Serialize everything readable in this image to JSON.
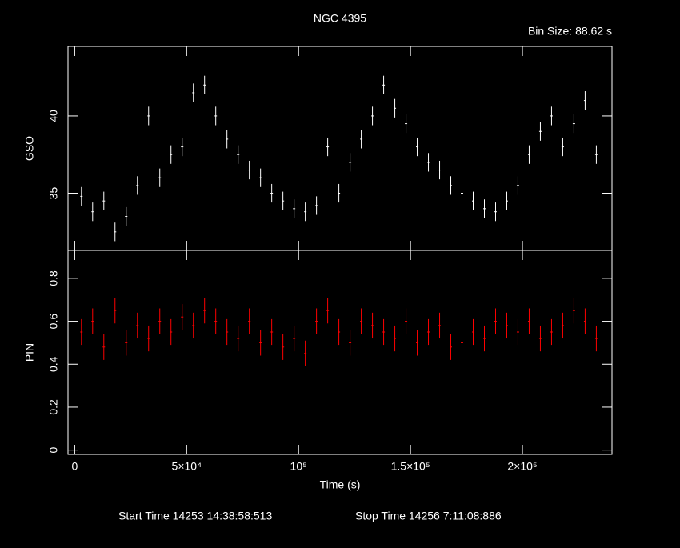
{
  "title": "NGC 4395",
  "bin_size": "Bin Size: 88.62 s",
  "start_time": "Start Time 14253 14:38:58:513",
  "stop_time": "Stop Time 14256  7:11:08:886",
  "xlabel": "Time (s)",
  "chart_data": [
    {
      "type": "errorbar",
      "ylabel": "GSO",
      "color": "#ffffff",
      "x": [
        3000,
        8000,
        13000,
        18000,
        23000,
        28000,
        33000,
        38000,
        43000,
        48000,
        53000,
        58000,
        63000,
        68000,
        73000,
        78000,
        83000,
        88000,
        93000,
        98000,
        103000,
        108000,
        113000,
        118000,
        123000,
        128000,
        133000,
        138000,
        143000,
        148000,
        153000,
        158000,
        163000,
        168000,
        173000,
        178000,
        183000,
        188000,
        193000,
        198000,
        203000,
        208000,
        213000,
        218000,
        223000,
        228000,
        233000
      ],
      "values": [
        34.8,
        33.8,
        34.5,
        32.5,
        33.5,
        35.5,
        40,
        36,
        37.5,
        38,
        41.5,
        42,
        40,
        38.5,
        37.5,
        36.5,
        36,
        35,
        34.5,
        34,
        33.8,
        34.2,
        38,
        35,
        37,
        38.5,
        40,
        42,
        40.5,
        39.5,
        38,
        37,
        36.5,
        35.5,
        35,
        34.5,
        34,
        33.8,
        34.5,
        35.5,
        37.5,
        39,
        40,
        38,
        39.5,
        41,
        37.5
      ],
      "errors": [
        0.6,
        0.6,
        0.6,
        0.6,
        0.6,
        0.6,
        0.6,
        0.6,
        0.6,
        0.6,
        0.6,
        0.6,
        0.6,
        0.6,
        0.6,
        0.6,
        0.6,
        0.6,
        0.6,
        0.6,
        0.6,
        0.6,
        0.6,
        0.6,
        0.6,
        0.6,
        0.6,
        0.6,
        0.6,
        0.6,
        0.6,
        0.6,
        0.6,
        0.6,
        0.6,
        0.6,
        0.6,
        0.6,
        0.6,
        0.6,
        0.6,
        0.6,
        0.6,
        0.6,
        0.6,
        0.6,
        0.6
      ],
      "xlim": [
        -3000,
        240000
      ],
      "xticks": [
        0,
        {
          "value": 50000,
          "label": "5×10⁴"
        },
        {
          "value": 100000,
          "label": "10⁵"
        },
        {
          "value": 150000,
          "label": "1.5×10⁵"
        },
        {
          "value": 200000,
          "label": "2×10⁵"
        }
      ],
      "ylim": [
        31.3,
        44.5
      ],
      "yticks": [
        35,
        40
      ]
    },
    {
      "type": "errorbar",
      "ylabel": "PIN",
      "color": "#ff0000",
      "x": [
        3000,
        8000,
        13000,
        18000,
        23000,
        28000,
        33000,
        38000,
        43000,
        48000,
        53000,
        58000,
        63000,
        68000,
        73000,
        78000,
        83000,
        88000,
        93000,
        98000,
        103000,
        108000,
        113000,
        118000,
        123000,
        128000,
        133000,
        138000,
        143000,
        148000,
        153000,
        158000,
        163000,
        168000,
        173000,
        178000,
        183000,
        188000,
        193000,
        198000,
        203000,
        208000,
        213000,
        218000,
        223000,
        228000,
        233000
      ],
      "values": [
        0.55,
        0.6,
        0.48,
        0.65,
        0.5,
        0.58,
        0.52,
        0.6,
        0.55,
        0.62,
        0.58,
        0.65,
        0.6,
        0.55,
        0.52,
        0.6,
        0.5,
        0.55,
        0.48,
        0.52,
        0.45,
        0.6,
        0.65,
        0.55,
        0.5,
        0.6,
        0.58,
        0.55,
        0.52,
        0.6,
        0.5,
        0.55,
        0.58,
        0.48,
        0.5,
        0.55,
        0.52,
        0.6,
        0.58,
        0.55,
        0.6,
        0.52,
        0.55,
        0.58,
        0.65,
        0.6,
        0.52
      ],
      "errors": [
        0.06,
        0.06,
        0.06,
        0.06,
        0.06,
        0.06,
        0.06,
        0.06,
        0.06,
        0.06,
        0.06,
        0.06,
        0.06,
        0.06,
        0.06,
        0.06,
        0.06,
        0.06,
        0.06,
        0.06,
        0.06,
        0.06,
        0.06,
        0.06,
        0.06,
        0.06,
        0.06,
        0.06,
        0.06,
        0.06,
        0.06,
        0.06,
        0.06,
        0.06,
        0.06,
        0.06,
        0.06,
        0.06,
        0.06,
        0.06,
        0.06,
        0.06,
        0.06,
        0.06,
        0.06,
        0.06,
        0.06
      ],
      "xlim": [
        -3000,
        240000
      ],
      "xticks": [
        0,
        {
          "value": 50000,
          "label": "5×10⁴"
        },
        {
          "value": 100000,
          "label": "10⁵"
        },
        {
          "value": 150000,
          "label": "1.5×10⁵"
        },
        {
          "value": 200000,
          "label": "2×10⁵"
        }
      ],
      "ylim": [
        -0.02,
        0.93
      ],
      "yticks": [
        0,
        0.2,
        0.4,
        0.6,
        0.8
      ]
    }
  ]
}
